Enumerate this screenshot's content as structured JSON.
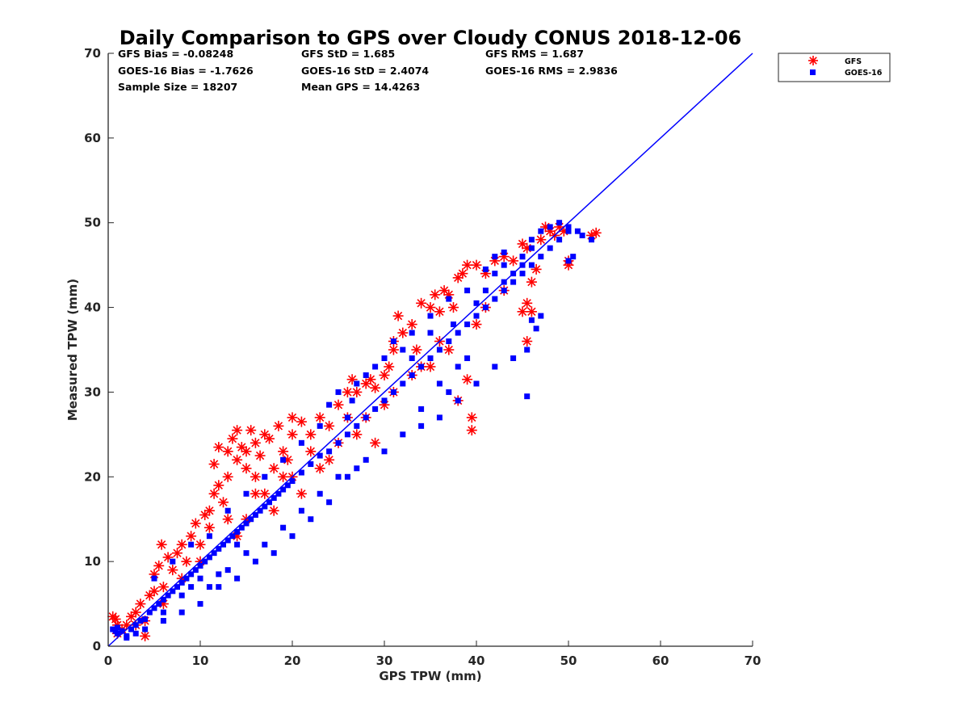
{
  "chart_data": {
    "type": "scatter",
    "title": "Daily Comparison to GPS over Cloudy CONUS 2018-12-06",
    "xlabel": "GPS TPW (mm)",
    "ylabel": "Measured TPW (mm)",
    "xlim": [
      0,
      70
    ],
    "ylim": [
      0,
      70
    ],
    "xticks": [
      0,
      10,
      20,
      30,
      40,
      50,
      60,
      70
    ],
    "yticks": [
      0,
      10,
      20,
      30,
      40,
      50,
      60,
      70
    ],
    "grid": false,
    "legend_position": "outside-top-right",
    "stats": [
      [
        "GFS Bias = -0.08248",
        "GFS StD = 1.685",
        "GFS RMS = 1.687"
      ],
      [
        "GOES-16 Bias = -1.7626",
        "GOES-16 StD = 2.4074",
        "GOES-16 RMS = 2.9836"
      ],
      [
        "Sample Size = 18207",
        "Mean GPS = 14.4263"
      ]
    ],
    "reference_line": {
      "x": [
        0,
        70
      ],
      "y": [
        0,
        70
      ],
      "color": "#0000ff"
    },
    "series": [
      {
        "name": "GFS",
        "marker": "asterisk",
        "color": "#ff0000",
        "points": [
          [
            0.5,
            3.5
          ],
          [
            0.8,
            3.2
          ],
          [
            1,
            2.5
          ],
          [
            1.5,
            2
          ],
          [
            2,
            2.5
          ],
          [
            2.5,
            3.5
          ],
          [
            3,
            4
          ],
          [
            3.5,
            5
          ],
          [
            4,
            1.2
          ],
          [
            4,
            3
          ],
          [
            4.5,
            6
          ],
          [
            5,
            6.5
          ],
          [
            5,
            8.5
          ],
          [
            5.5,
            9.5
          ],
          [
            5.8,
            12
          ],
          [
            6,
            7
          ],
          [
            6.5,
            10.5
          ],
          [
            7,
            9
          ],
          [
            7.5,
            11
          ],
          [
            8,
            12
          ],
          [
            8.5,
            10
          ],
          [
            9,
            13
          ],
          [
            9.5,
            14.5
          ],
          [
            10,
            12
          ],
          [
            10.5,
            15.5
          ],
          [
            11,
            14
          ],
          [
            11,
            16
          ],
          [
            11.5,
            18
          ],
          [
            11.5,
            21.5
          ],
          [
            12,
            19
          ],
          [
            12,
            23.5
          ],
          [
            12.5,
            17
          ],
          [
            13,
            20
          ],
          [
            13,
            23
          ],
          [
            13.5,
            24.5
          ],
          [
            14,
            25.5
          ],
          [
            14,
            22
          ],
          [
            14.5,
            23.5
          ],
          [
            15,
            21
          ],
          [
            15,
            23
          ],
          [
            15.5,
            25.5
          ],
          [
            16,
            20
          ],
          [
            16,
            24
          ],
          [
            16.5,
            22.5
          ],
          [
            17,
            25
          ],
          [
            17,
            18
          ],
          [
            17.5,
            24.5
          ],
          [
            18,
            21
          ],
          [
            18.5,
            26
          ],
          [
            19,
            23
          ],
          [
            19.5,
            22
          ],
          [
            20,
            25
          ],
          [
            20,
            27
          ],
          [
            21,
            26.5
          ],
          [
            22,
            25
          ],
          [
            23,
            27
          ],
          [
            24,
            26
          ],
          [
            25,
            28.5
          ],
          [
            26,
            30
          ],
          [
            26.5,
            31.5
          ],
          [
            27,
            30
          ],
          [
            28,
            31
          ],
          [
            28.5,
            31.5
          ],
          [
            29,
            30.5
          ],
          [
            30,
            32
          ],
          [
            30.5,
            33
          ],
          [
            31,
            35
          ],
          [
            31.5,
            39
          ],
          [
            31,
            36
          ],
          [
            32,
            37
          ],
          [
            33,
            38
          ],
          [
            33.5,
            35
          ],
          [
            34,
            40.5
          ],
          [
            35,
            40
          ],
          [
            35.5,
            41.5
          ],
          [
            36,
            39.5
          ],
          [
            36.5,
            42
          ],
          [
            37,
            41.5
          ],
          [
            37.5,
            40
          ],
          [
            38,
            43.5
          ],
          [
            38,
            29
          ],
          [
            39,
            31.5
          ],
          [
            39.5,
            27
          ],
          [
            39.5,
            25.5
          ],
          [
            38.5,
            44
          ],
          [
            39,
            45
          ],
          [
            40,
            45
          ],
          [
            41,
            44
          ],
          [
            42,
            45.5
          ],
          [
            43,
            46
          ],
          [
            44,
            45.5
          ],
          [
            45,
            47.5
          ],
          [
            45.5,
            47
          ],
          [
            45,
            39.5
          ],
          [
            45.5,
            40.5
          ],
          [
            46,
            39.5
          ],
          [
            46,
            43
          ],
          [
            45.5,
            36
          ],
          [
            46.5,
            44.5
          ],
          [
            47,
            48
          ],
          [
            47.5,
            49.5
          ],
          [
            48,
            49
          ],
          [
            48.5,
            48.5
          ],
          [
            49,
            49.5
          ],
          [
            49.5,
            49
          ],
          [
            50,
            45.5
          ],
          [
            50,
            45
          ],
          [
            52.5,
            48.5
          ],
          [
            53,
            48.8
          ],
          [
            20,
            20
          ],
          [
            25,
            24
          ],
          [
            30,
            28.5
          ],
          [
            35,
            33
          ],
          [
            40,
            38
          ],
          [
            10,
            10
          ],
          [
            15,
            15
          ],
          [
            22,
            23
          ],
          [
            28,
            27
          ],
          [
            33,
            32
          ],
          [
            36,
            36
          ],
          [
            24,
            22
          ],
          [
            26,
            27
          ],
          [
            29,
            24
          ],
          [
            21,
            18
          ],
          [
            18,
            16
          ],
          [
            14,
            13
          ],
          [
            8,
            8
          ],
          [
            6,
            5
          ],
          [
            3,
            2.5
          ],
          [
            1,
            1.5
          ],
          [
            13,
            15
          ],
          [
            16,
            18
          ],
          [
            19,
            20
          ],
          [
            23,
            21
          ],
          [
            27,
            25
          ],
          [
            31,
            30
          ],
          [
            34,
            33
          ],
          [
            37,
            35
          ],
          [
            41,
            40
          ],
          [
            43,
            42
          ]
        ]
      },
      {
        "name": "GOES-16",
        "marker": "square",
        "color": "#0000ff",
        "points": [
          [
            0.5,
            2
          ],
          [
            1,
            1.5
          ],
          [
            1.5,
            1.8
          ],
          [
            2,
            1.2
          ],
          [
            2.5,
            2
          ],
          [
            3,
            2.5
          ],
          [
            3.5,
            3
          ],
          [
            4,
            3.2
          ],
          [
            4.5,
            4
          ],
          [
            5,
            4.5
          ],
          [
            5.5,
            5
          ],
          [
            6,
            5.5
          ],
          [
            6.5,
            6
          ],
          [
            7,
            6.5
          ],
          [
            7.5,
            7
          ],
          [
            8,
            7.5
          ],
          [
            8.5,
            8
          ],
          [
            9,
            8.5
          ],
          [
            9.5,
            9
          ],
          [
            10,
            9.5
          ],
          [
            10.5,
            10
          ],
          [
            11,
            10.5
          ],
          [
            11.5,
            11
          ],
          [
            12,
            11.5
          ],
          [
            12.5,
            12
          ],
          [
            13,
            12.5
          ],
          [
            13.5,
            13
          ],
          [
            14,
            13.5
          ],
          [
            14.5,
            14
          ],
          [
            15,
            14.5
          ],
          [
            15.5,
            15
          ],
          [
            16,
            15.5
          ],
          [
            16.5,
            16
          ],
          [
            17,
            16.5
          ],
          [
            17.5,
            17
          ],
          [
            18,
            17.5
          ],
          [
            18.5,
            18
          ],
          [
            19,
            18.5
          ],
          [
            19.5,
            19
          ],
          [
            20,
            19.5
          ],
          [
            21,
            20.5
          ],
          [
            22,
            21.5
          ],
          [
            23,
            22.5
          ],
          [
            24,
            23
          ],
          [
            25,
            24
          ],
          [
            26,
            25
          ],
          [
            27,
            26
          ],
          [
            28,
            27
          ],
          [
            29,
            28
          ],
          [
            30,
            29
          ],
          [
            31,
            30
          ],
          [
            32,
            31
          ],
          [
            33,
            32
          ],
          [
            34,
            33
          ],
          [
            35,
            34
          ],
          [
            36,
            35
          ],
          [
            37,
            36
          ],
          [
            38,
            37
          ],
          [
            39,
            38
          ],
          [
            40,
            39
          ],
          [
            41,
            40
          ],
          [
            42,
            41
          ],
          [
            43,
            42
          ],
          [
            44,
            43
          ],
          [
            45,
            44
          ],
          [
            46,
            45
          ],
          [
            47,
            46
          ],
          [
            48,
            47
          ],
          [
            49,
            48
          ],
          [
            50,
            49
          ],
          [
            49,
            50
          ],
          [
            50,
            49.5
          ],
          [
            48,
            49.5
          ],
          [
            47,
            49
          ],
          [
            46,
            47
          ],
          [
            45,
            46
          ],
          [
            44,
            44
          ],
          [
            43,
            45
          ],
          [
            42,
            44
          ],
          [
            41,
            42
          ],
          [
            6,
            3
          ],
          [
            8,
            4
          ],
          [
            10,
            5
          ],
          [
            12,
            7
          ],
          [
            14,
            8
          ],
          [
            16,
            10
          ],
          [
            18,
            11
          ],
          [
            20,
            13
          ],
          [
            22,
            15
          ],
          [
            24,
            17
          ],
          [
            26,
            20
          ],
          [
            28,
            22
          ],
          [
            30,
            23
          ],
          [
            32,
            25
          ],
          [
            34,
            26
          ],
          [
            36,
            27
          ],
          [
            38,
            29
          ],
          [
            40,
            31
          ],
          [
            42,
            33
          ],
          [
            44,
            34
          ],
          [
            5,
            8
          ],
          [
            7,
            10
          ],
          [
            9,
            12
          ],
          [
            11,
            13
          ],
          [
            13,
            16
          ],
          [
            15,
            18
          ],
          [
            17,
            20
          ],
          [
            19,
            22
          ],
          [
            21,
            24
          ],
          [
            23,
            26
          ],
          [
            24,
            28.5
          ],
          [
            26,
            27
          ],
          [
            27,
            31
          ],
          [
            29,
            33
          ],
          [
            31,
            36
          ],
          [
            33,
            37
          ],
          [
            35,
            39
          ],
          [
            37,
            41
          ],
          [
            39,
            42
          ],
          [
            41,
            44.5
          ],
          [
            42,
            46
          ],
          [
            43,
            46.5
          ],
          [
            45,
            46
          ],
          [
            46,
            48
          ],
          [
            45,
            45
          ],
          [
            50,
            45.5
          ],
          [
            50.5,
            46
          ],
          [
            51,
            49
          ],
          [
            51.5,
            48.5
          ],
          [
            52.5,
            48
          ],
          [
            45.5,
            29.5
          ],
          [
            46,
            38.5
          ],
          [
            46.5,
            37.5
          ],
          [
            47,
            39
          ],
          [
            45.5,
            35
          ],
          [
            34,
            28
          ],
          [
            36,
            31
          ],
          [
            38,
            33
          ],
          [
            39,
            34
          ],
          [
            37,
            30
          ],
          [
            25,
            30
          ],
          [
            26.5,
            29
          ],
          [
            28,
            32
          ],
          [
            30,
            34
          ],
          [
            32,
            35
          ],
          [
            33,
            34
          ],
          [
            35,
            37
          ],
          [
            37.5,
            38
          ],
          [
            40,
            40.5
          ],
          [
            43,
            43
          ],
          [
            11,
            7
          ],
          [
            12,
            8.5
          ],
          [
            13,
            9
          ],
          [
            15,
            11
          ],
          [
            17,
            12
          ],
          [
            19,
            14
          ],
          [
            21,
            16
          ],
          [
            23,
            18
          ],
          [
            25,
            20
          ],
          [
            27,
            21
          ],
          [
            3,
            1.5
          ],
          [
            2,
            1
          ],
          [
            4,
            2
          ],
          [
            1,
            2.2
          ],
          [
            0.8,
            1.8
          ],
          [
            6,
            4
          ],
          [
            8,
            6
          ],
          [
            9,
            7
          ],
          [
            10,
            8
          ],
          [
            14,
            12
          ]
        ]
      }
    ]
  }
}
